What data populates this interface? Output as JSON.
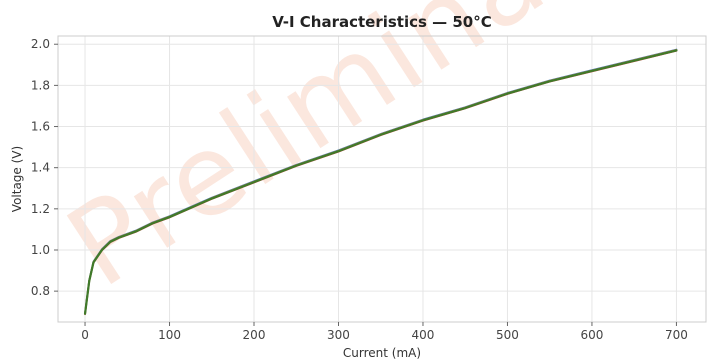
{
  "chart_data": {
    "type": "line",
    "title": "V-I Characteristics — 50°C",
    "xlabel": "Current (mA)",
    "ylabel": "Voltage (V)",
    "xlim": [
      -32,
      735
    ],
    "ylim": [
      0.65,
      2.04
    ],
    "xticks": [
      0,
      100,
      200,
      300,
      400,
      500,
      600,
      700
    ],
    "yticks": [
      0.8,
      1.0,
      1.2,
      1.4,
      1.6,
      1.8,
      2.0
    ],
    "grid": true,
    "watermark": "Preliminary",
    "series": [
      {
        "color": "#3a78b8",
        "offset": 0.004,
        "x": [
          0,
          5,
          10,
          20,
          30,
          40,
          60,
          80,
          100,
          150,
          200,
          250,
          300,
          350,
          400,
          450,
          500,
          550,
          600,
          650,
          700
        ],
        "y": [
          0.69,
          0.85,
          0.94,
          1.0,
          1.04,
          1.06,
          1.09,
          1.13,
          1.16,
          1.25,
          1.33,
          1.41,
          1.48,
          1.56,
          1.63,
          1.69,
          1.76,
          1.82,
          1.87,
          1.92,
          1.97
        ]
      },
      {
        "color": "#d9822b",
        "offset": 0.002,
        "x": [
          0,
          5,
          10,
          20,
          30,
          40,
          60,
          80,
          100,
          150,
          200,
          250,
          300,
          350,
          400,
          450,
          500,
          550,
          600,
          650,
          700
        ],
        "y": [
          0.69,
          0.85,
          0.94,
          1.0,
          1.04,
          1.06,
          1.09,
          1.13,
          1.16,
          1.25,
          1.33,
          1.41,
          1.48,
          1.56,
          1.63,
          1.69,
          1.76,
          1.82,
          1.87,
          1.92,
          1.97
        ]
      },
      {
        "color": "#c9413a",
        "offset": -0.002,
        "x": [
          0,
          5,
          10,
          20,
          30,
          40,
          60,
          80,
          100,
          150,
          200,
          250,
          300,
          350,
          400,
          450,
          500,
          550,
          600,
          650,
          700
        ],
        "y": [
          0.69,
          0.85,
          0.94,
          1.0,
          1.04,
          1.06,
          1.09,
          1.13,
          1.16,
          1.25,
          1.33,
          1.41,
          1.48,
          1.56,
          1.63,
          1.69,
          1.76,
          1.82,
          1.87,
          1.92,
          1.97
        ]
      },
      {
        "color": "#3f7a2a",
        "offset": 0,
        "x": [
          0,
          5,
          10,
          20,
          30,
          40,
          60,
          80,
          100,
          150,
          200,
          250,
          300,
          350,
          400,
          450,
          500,
          550,
          600,
          650,
          700
        ],
        "y": [
          0.69,
          0.85,
          0.94,
          1.0,
          1.04,
          1.06,
          1.09,
          1.13,
          1.16,
          1.25,
          1.33,
          1.41,
          1.48,
          1.56,
          1.63,
          1.69,
          1.76,
          1.82,
          1.87,
          1.92,
          1.97
        ]
      }
    ]
  },
  "colors": {
    "axes_border": "#cccccc",
    "grid": "#e6e6e6",
    "tick_mark": "#666666"
  }
}
